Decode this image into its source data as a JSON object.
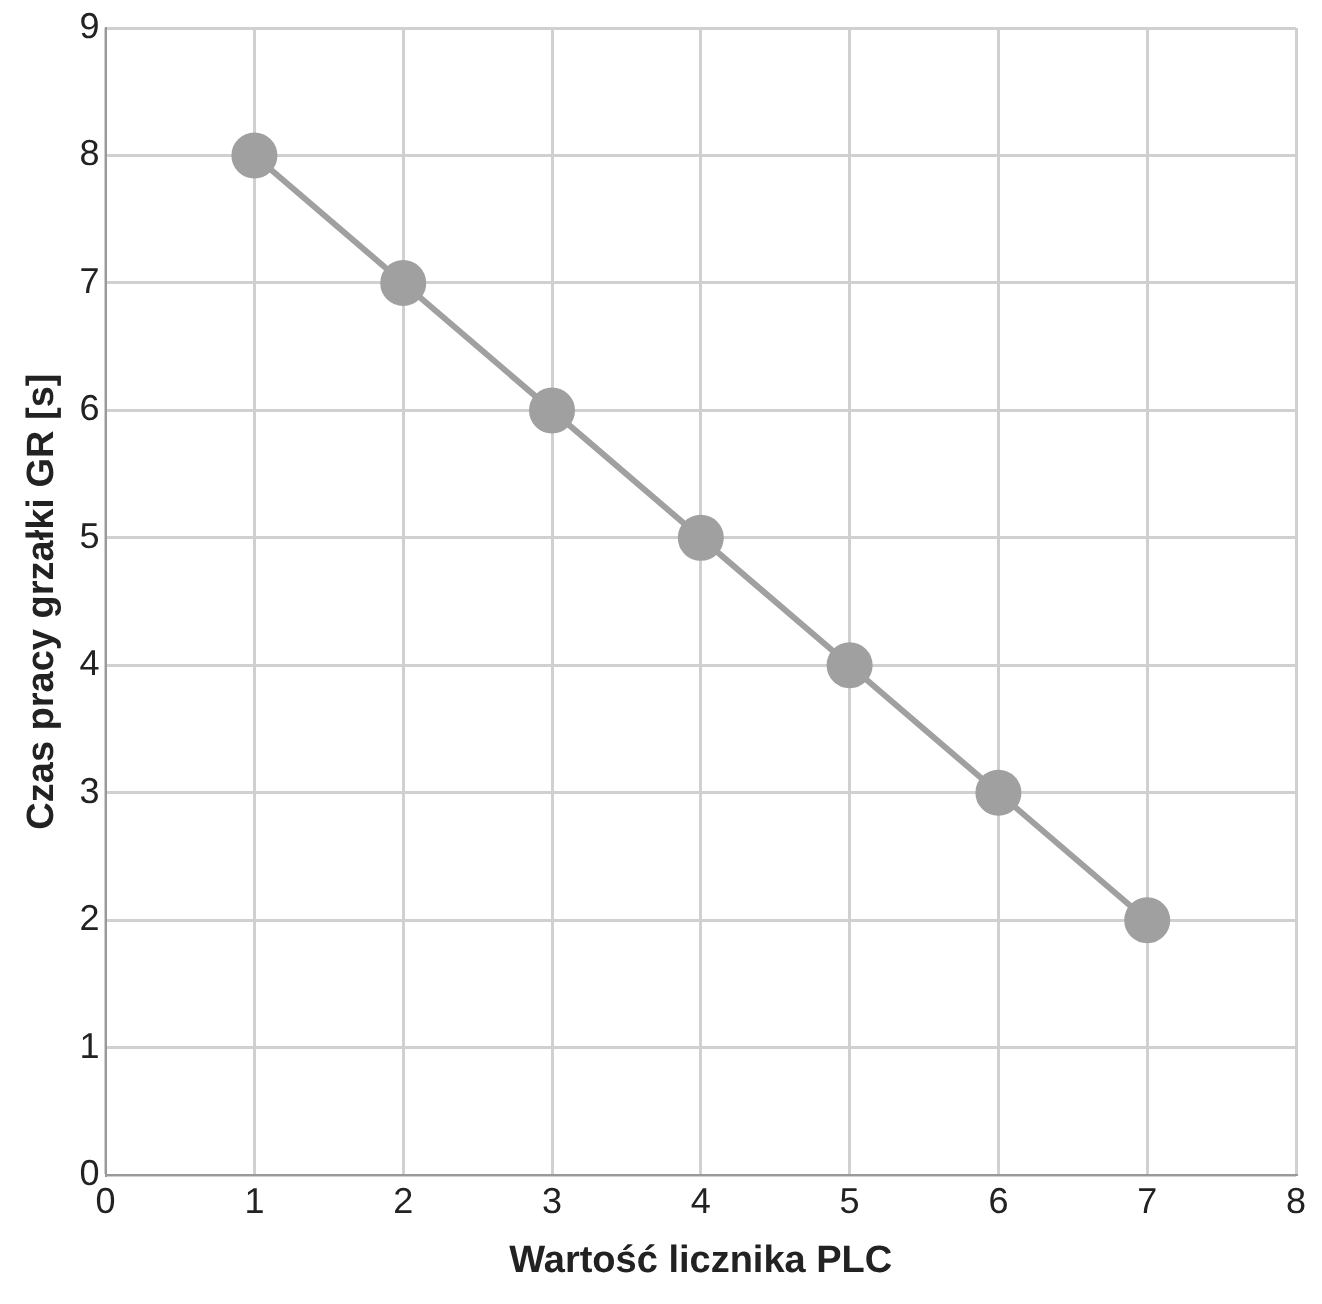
{
  "chart_data": {
    "type": "line",
    "xlabel": "Wartość licznika PLC",
    "ylabel": "Czas pracy grzałki GR [s]",
    "x": [
      1,
      2,
      3,
      4,
      5,
      6,
      7
    ],
    "series": [
      {
        "color": "#a0a0a0",
        "values": [
          8,
          7,
          6,
          5,
          4,
          3,
          2
        ]
      }
    ],
    "xlim": [
      0,
      8
    ],
    "xticks": [
      0,
      1,
      2,
      3,
      4,
      5,
      6,
      7,
      8
    ],
    "ylim": [
      0,
      9
    ],
    "yticks": [
      0,
      1,
      2,
      3,
      4,
      5,
      6,
      7,
      8,
      9
    ],
    "grid": true,
    "legend": false,
    "marker": "circle",
    "line_style": "solid"
  }
}
